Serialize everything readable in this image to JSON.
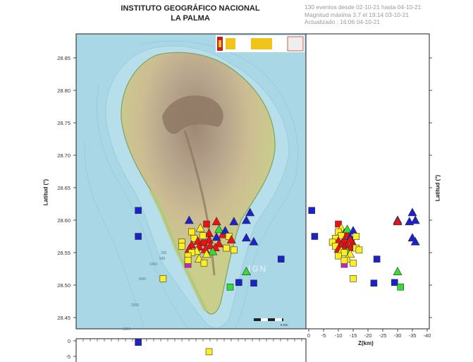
{
  "header": {
    "title_line1": "INSTITUTO GEOGRÁFICO NACIONAL",
    "title_line2": "LA PALMA",
    "info_line1": "130 eventos desde 02-10-21 hasta 04-10-21",
    "info_line2": "Magnitud máxima 3.7 el 19:14 03-10-21",
    "info_line3": "Actualizado : 16:06  04-10-21"
  },
  "axes": {
    "lat_label": "Latitud (°)",
    "lat_ticks": [
      "28.85",
      "28.80",
      "28.75",
      "28.70",
      "28.65",
      "28.60",
      "28.55",
      "28.50",
      "28.45"
    ],
    "lat_values": [
      28.85,
      28.8,
      28.75,
      28.7,
      28.65,
      28.6,
      28.55,
      28.5,
      28.45
    ],
    "depth_label": "Z(km)",
    "depth_ticks": [
      "0",
      "-5",
      "-10",
      "-15",
      "-20",
      "-25",
      "-30",
      "-35",
      "-40"
    ],
    "depth_values": [
      0,
      -5,
      -10,
      -15,
      -20,
      -25,
      -30,
      -35,
      -40
    ],
    "lower_ticks": [
      "0",
      "-5"
    ],
    "lower_values": [
      0,
      -5
    ]
  },
  "map_labels": {
    "watermark": "IGN",
    "contour_labels": [
      "200",
      "500",
      "1000",
      "1500",
      "2000",
      "3000"
    ],
    "scale_label": "5 Km"
  },
  "legend_colors": {
    "red": "#ee1111",
    "yellow": "#ffee22",
    "blue": "#1a22cc",
    "green": "#33dd33",
    "magenta": "#cc22cc",
    "sea": "#a9d7e6"
  },
  "events": [
    {
      "lat": 28.615,
      "lon": -17.955,
      "depth": -1,
      "shape": "square",
      "color": "blue"
    },
    {
      "lat": 28.575,
      "lon": -17.955,
      "depth": -2,
      "shape": "square",
      "color": "blue"
    },
    {
      "lat": 28.54,
      "lon": -17.84,
      "depth": -23,
      "shape": "square",
      "color": "blue"
    },
    {
      "lat": 28.503,
      "lon": -17.862,
      "depth": -22,
      "shape": "square",
      "color": "blue"
    },
    {
      "lat": 28.504,
      "lon": -17.874,
      "depth": -29,
      "shape": "square",
      "color": "blue"
    },
    {
      "lat": 28.497,
      "lon": -17.881,
      "depth": -31,
      "shape": "square",
      "color": "green"
    },
    {
      "lat": 28.521,
      "lon": -17.868,
      "depth": -30,
      "shape": "triangle",
      "color": "green"
    },
    {
      "lat": 28.51,
      "lon": -17.935,
      "depth": -15,
      "shape": "square",
      "color": "yellow"
    },
    {
      "lat": 28.532,
      "lon": -17.915,
      "depth": -12,
      "shape": "square",
      "color": "magenta"
    },
    {
      "lat": 28.612,
      "lon": -17.865,
      "depth": -35,
      "shape": "triangle",
      "color": "blue"
    },
    {
      "lat": 28.6,
      "lon": -17.868,
      "depth": -36,
      "shape": "triangle",
      "color": "blue"
    },
    {
      "lat": 28.598,
      "lon": -17.878,
      "depth": -34,
      "shape": "triangle",
      "color": "blue"
    },
    {
      "lat": 28.573,
      "lon": -17.868,
      "depth": -35,
      "shape": "triangle",
      "color": "blue"
    },
    {
      "lat": 28.567,
      "lon": -17.862,
      "depth": -36,
      "shape": "triangle",
      "color": "blue"
    },
    {
      "lat": 28.6,
      "lon": -17.914,
      "depth": -30,
      "shape": "triangle",
      "color": "blue"
    },
    {
      "lat": 28.598,
      "lon": -17.892,
      "depth": -30,
      "shape": "triangle",
      "color": "red"
    },
    {
      "lat": 28.594,
      "lon": -17.9,
      "depth": -10,
      "shape": "square",
      "color": "red"
    },
    {
      "lat": 28.588,
      "lon": -17.905,
      "depth": -11,
      "shape": "triangle",
      "color": "yellow"
    },
    {
      "lat": 28.582,
      "lon": -17.912,
      "depth": -10,
      "shape": "square",
      "color": "yellow"
    },
    {
      "lat": 28.58,
      "lon": -17.898,
      "depth": -12,
      "shape": "triangle",
      "color": "red"
    },
    {
      "lat": 28.578,
      "lon": -17.887,
      "depth": -13,
      "shape": "triangle",
      "color": "red"
    },
    {
      "lat": 28.576,
      "lon": -17.903,
      "depth": -11,
      "shape": "square",
      "color": "yellow"
    },
    {
      "lat": 28.574,
      "lon": -17.892,
      "depth": -14,
      "shape": "triangle",
      "color": "blue"
    },
    {
      "lat": 28.572,
      "lon": -17.91,
      "depth": -9,
      "shape": "square",
      "color": "yellow"
    },
    {
      "lat": 28.57,
      "lon": -17.898,
      "depth": -12,
      "shape": "triangle",
      "color": "red"
    },
    {
      "lat": 28.568,
      "lon": -17.907,
      "depth": -10,
      "shape": "triangle",
      "color": "red"
    },
    {
      "lat": 28.566,
      "lon": -17.92,
      "depth": -8,
      "shape": "square",
      "color": "yellow"
    },
    {
      "lat": 28.565,
      "lon": -17.902,
      "depth": -12,
      "shape": "square",
      "color": "red"
    },
    {
      "lat": 28.564,
      "lon": -17.89,
      "depth": -15,
      "shape": "triangle",
      "color": "red"
    },
    {
      "lat": 28.562,
      "lon": -17.912,
      "depth": -11,
      "shape": "triangle",
      "color": "red"
    },
    {
      "lat": 28.561,
      "lon": -17.897,
      "depth": -13,
      "shape": "triangle",
      "color": "red"
    },
    {
      "lat": 28.56,
      "lon": -17.92,
      "depth": -9,
      "shape": "square",
      "color": "yellow"
    },
    {
      "lat": 28.559,
      "lon": -17.906,
      "depth": -12,
      "shape": "triangle",
      "color": "red"
    },
    {
      "lat": 28.558,
      "lon": -17.893,
      "depth": -14,
      "shape": "triangle",
      "color": "red"
    },
    {
      "lat": 28.557,
      "lon": -17.884,
      "depth": -16,
      "shape": "square",
      "color": "yellow"
    },
    {
      "lat": 28.556,
      "lon": -17.914,
      "depth": -10,
      "shape": "triangle",
      "color": "red"
    },
    {
      "lat": 28.555,
      "lon": -17.901,
      "depth": -12,
      "shape": "triangle",
      "color": "red"
    },
    {
      "lat": 28.554,
      "lon": -17.878,
      "depth": -17,
      "shape": "square",
      "color": "yellow"
    },
    {
      "lat": 28.553,
      "lon": -17.908,
      "depth": -11,
      "shape": "triangle",
      "color": "yellow"
    },
    {
      "lat": 28.552,
      "lon": -17.895,
      "depth": -13,
      "shape": "triangle",
      "color": "green"
    },
    {
      "lat": 28.55,
      "lon": -17.912,
      "depth": -12,
      "shape": "square",
      "color": "yellow"
    },
    {
      "lat": 28.548,
      "lon": -17.9,
      "depth": -14,
      "shape": "triangle",
      "color": "yellow"
    },
    {
      "lat": 28.545,
      "lon": -17.915,
      "depth": -10,
      "shape": "square",
      "color": "yellow"
    },
    {
      "lat": 28.541,
      "lon": -17.906,
      "depth": -13,
      "shape": "triangle",
      "color": "yellow"
    },
    {
      "lat": 28.538,
      "lon": -17.915,
      "depth": -12,
      "shape": "square",
      "color": "yellow"
    },
    {
      "lat": 28.534,
      "lon": -17.902,
      "depth": -15,
      "shape": "square",
      "color": "yellow"
    },
    {
      "lat": 28.586,
      "lon": -17.89,
      "depth": -13,
      "shape": "triangle",
      "color": "green"
    },
    {
      "lat": 28.584,
      "lon": -17.885,
      "depth": -15,
      "shape": "triangle",
      "color": "blue"
    },
    {
      "lat": 28.575,
      "lon": -17.882,
      "depth": -16,
      "shape": "square",
      "color": "yellow"
    },
    {
      "lat": 28.57,
      "lon": -17.88,
      "depth": -14,
      "shape": "triangle",
      "color": "red"
    }
  ],
  "lower_events": [
    {
      "lon": -17.955,
      "depth": -0.5,
      "color": "blue"
    },
    {
      "lon": -17.898,
      "depth": -3.5,
      "color": "yellow"
    }
  ]
}
